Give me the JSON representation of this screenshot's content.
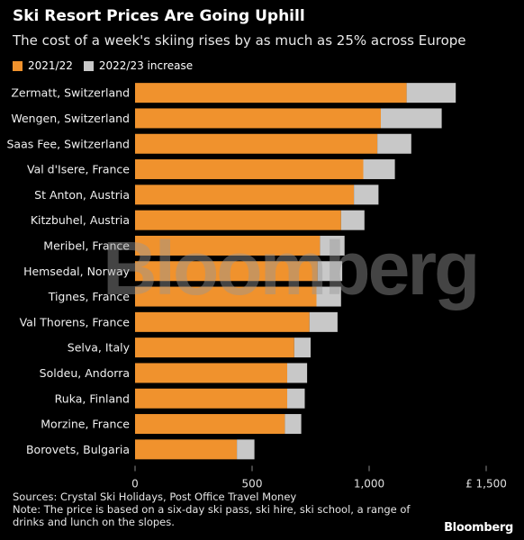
{
  "header": {
    "title": "Ski Resort Prices Are Going Uphill",
    "subtitle": "The cost of a week's skiing rises by as much as 25% across Europe"
  },
  "legend": {
    "items": [
      {
        "label": "2021/22",
        "color": "#f0922d"
      },
      {
        "label": "2022/23 increase",
        "color": "#c8c8c8"
      }
    ]
  },
  "chart_data": {
    "type": "bar",
    "orientation": "horizontal",
    "stacked": true,
    "categories": [
      "Zermatt, Switzerland",
      "Wengen, Switzerland",
      "Saas Fee, Switzerland",
      "Val d'Isere, France",
      "St Anton, Austria",
      "Kitzbuhel, Austria",
      "Meribel, France",
      "Hemsedal, Norway",
      "Tignes, France",
      "Val Thorens, France",
      "Selva, Italy",
      "Soldeu, Andorra",
      "Ruka, Finland",
      "Morzine, France",
      "Borovets, Bulgaria"
    ],
    "series": [
      {
        "name": "2021/22",
        "color": "#f0922d",
        "values": [
          1160,
          1050,
          1035,
          975,
          935,
          880,
          790,
          780,
          775,
          745,
          680,
          650,
          650,
          640,
          435
        ]
      },
      {
        "name": "2022/23 increase",
        "color": "#c8c8c8",
        "values": [
          210,
          260,
          145,
          135,
          105,
          100,
          105,
          105,
          105,
          120,
          70,
          85,
          75,
          70,
          75
        ]
      }
    ],
    "xlim": [
      0,
      1500
    ],
    "xticks": [
      "0",
      "500",
      "1,000",
      "£ 1,500"
    ],
    "xtick_values": [
      0,
      500,
      1000,
      1500
    ],
    "grid": true
  },
  "footer": {
    "sources": "Sources: Crystal Ski Holidays, Post Office Travel Money",
    "note": "Note: The price is based on a six-day ski pass, ski hire, ski school, a range of drinks and lunch on the slopes.",
    "brand": "Bloomberg",
    "watermark": "Bloomberg"
  }
}
